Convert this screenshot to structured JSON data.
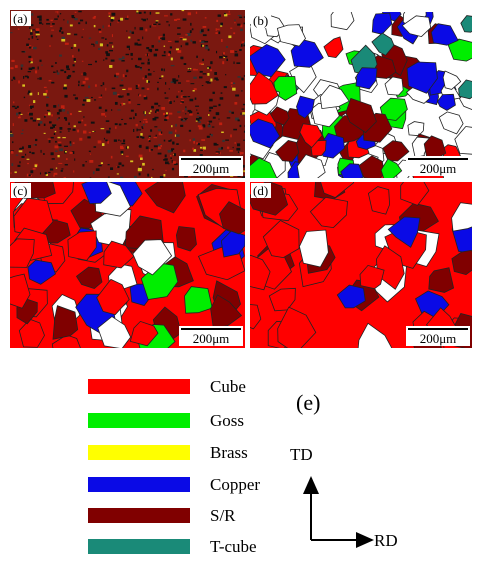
{
  "panels": [
    {
      "label": "(a)",
      "scale_bar": "200μm"
    },
    {
      "label": "(b)",
      "scale_bar": "200μm"
    },
    {
      "label": "(c)",
      "scale_bar": "200μm"
    },
    {
      "label": "(d)",
      "scale_bar": "200μm"
    }
  ],
  "legend": {
    "items": [
      {
        "label": "Cube",
        "color": "#ff0000"
      },
      {
        "label": "Goss",
        "color": "#00ee00"
      },
      {
        "label": "Brass",
        "color": "#ffff00"
      },
      {
        "label": "Copper",
        "color": "#0a0ae6"
      },
      {
        "label": "S/R",
        "color": "#800000"
      },
      {
        "label": "T-cube",
        "color": "#1a8a78"
      }
    ]
  },
  "figure_label": "(e)",
  "axes": {
    "td": "TD",
    "rd": "RD"
  }
}
